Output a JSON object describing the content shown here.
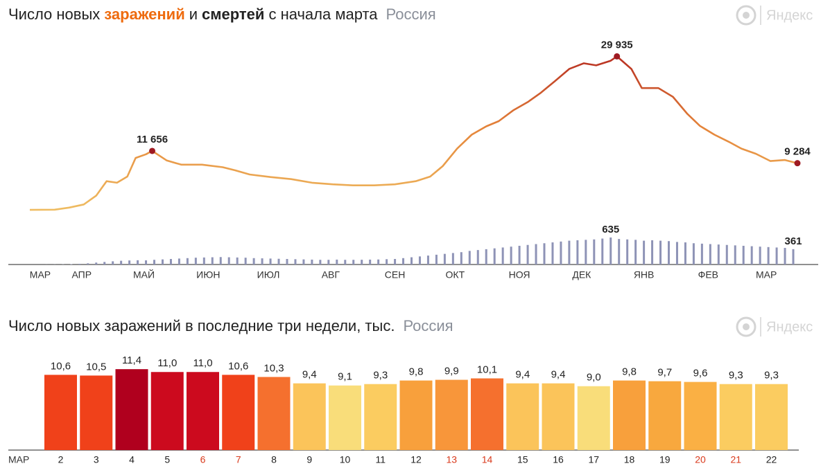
{
  "brand": "Яндекс",
  "chart_data": [
    {
      "type": "line",
      "title_parts": [
        "Число новых",
        "заражений",
        "и",
        "смертей",
        "с начала марта"
      ],
      "title_styles": [
        {
          "color": "#222",
          "bold": false
        },
        {
          "color": "#ee6b0e",
          "bold": true
        },
        {
          "color": "#222",
          "bold": false
        },
        {
          "color": "#222",
          "bold": true
        },
        {
          "color": "#222",
          "bold": false
        }
      ],
      "region": "Россия",
      "xlim": [
        20,
        390
      ],
      "xticks": [
        {
          "value": 25,
          "label": "МАР"
        },
        {
          "value": 45,
          "label": "АПР"
        },
        {
          "value": 75,
          "label": "МАЙ"
        },
        {
          "value": 106,
          "label": "ИЮН"
        },
        {
          "value": 135,
          "label": "ИЮЛ"
        },
        {
          "value": 165,
          "label": "АВГ"
        },
        {
          "value": 196,
          "label": "СЕН"
        },
        {
          "value": 225,
          "label": "ОКТ"
        },
        {
          "value": 256,
          "label": "НОЯ"
        },
        {
          "value": 286,
          "label": "ДЕК"
        },
        {
          "value": 316,
          "label": "ЯНВ"
        },
        {
          "value": 347,
          "label": "ФЕВ"
        },
        {
          "value": 375,
          "label": "МАР"
        }
      ],
      "ylim": [
        0,
        32000
      ],
      "y2lim": [
        0,
        700
      ],
      "gradient": [
        "#efbd62",
        "#e5853a",
        "#b1221e"
      ],
      "marker_color": "#9e1a22",
      "series": [
        {
          "name": "заражений",
          "type": "line",
          "x": [
            20,
            32,
            39,
            46,
            52,
            57,
            62,
            67,
            71,
            76,
            79,
            86,
            93,
            103,
            113,
            119,
            126,
            136,
            146,
            156,
            166,
            176,
            186,
            196,
            206,
            213,
            219,
            226,
            233,
            240,
            246,
            253,
            260,
            266,
            273,
            280,
            287,
            293,
            300,
            303,
            310,
            315,
            323,
            330,
            337,
            343,
            350,
            357,
            363,
            370,
            377,
            384,
            390
          ],
          "values": [
            250,
            300,
            700,
            1300,
            3000,
            5800,
            5500,
            6700,
            10300,
            11000,
            11656,
            9800,
            9000,
            9000,
            8500,
            7900,
            7100,
            6600,
            6200,
            5500,
            5200,
            5000,
            5000,
            5200,
            5800,
            6700,
            8700,
            12100,
            14800,
            16400,
            17400,
            19500,
            21100,
            22800,
            25100,
            27500,
            28600,
            28200,
            29100,
            29935,
            27500,
            23800,
            23800,
            22100,
            18800,
            16500,
            14800,
            13400,
            12100,
            11100,
            9700,
            9900,
            9284
          ],
          "value_labels": [
            null,
            null,
            null,
            null,
            null,
            null,
            null,
            null,
            null,
            null,
            "11 656",
            null,
            null,
            null,
            null,
            null,
            null,
            null,
            null,
            null,
            null,
            null,
            null,
            null,
            null,
            null,
            null,
            null,
            null,
            null,
            null,
            null,
            null,
            null,
            null,
            null,
            null,
            null,
            null,
            "29 935",
            null,
            null,
            null,
            null,
            null,
            null,
            null,
            null,
            null,
            null,
            null,
            null,
            "9 284"
          ]
        },
        {
          "name": "смертей",
          "type": "bar",
          "axis": "y2",
          "color": "#8e93b6",
          "x": [
            24,
            28,
            32,
            36,
            40,
            44,
            48,
            52,
            56,
            60,
            64,
            68,
            72,
            76,
            80,
            84,
            88,
            92,
            96,
            100,
            104,
            108,
            112,
            116,
            120,
            124,
            128,
            132,
            136,
            140,
            144,
            148,
            152,
            156,
            160,
            164,
            168,
            172,
            176,
            180,
            184,
            188,
            192,
            196,
            200,
            204,
            208,
            212,
            216,
            220,
            224,
            228,
            232,
            236,
            240,
            244,
            248,
            252,
            256,
            260,
            264,
            268,
            272,
            276,
            280,
            284,
            288,
            292,
            296,
            300,
            304,
            308,
            312,
            316,
            320,
            324,
            328,
            332,
            336,
            340,
            344,
            348,
            352,
            356,
            360,
            364,
            368,
            372,
            376,
            380,
            384,
            388
          ],
          "values": [
            0,
            1,
            2,
            4,
            9,
            17,
            28,
            45,
            60,
            75,
            88,
            95,
            100,
            98,
            110,
            120,
            130,
            140,
            150,
            160,
            165,
            170,
            175,
            170,
            165,
            160,
            150,
            145,
            140,
            135,
            130,
            125,
            120,
            115,
            110,
            110,
            115,
            110,
            110,
            112,
            115,
            118,
            125,
            130,
            150,
            170,
            190,
            210,
            230,
            250,
            270,
            290,
            320,
            340,
            360,
            380,
            400,
            420,
            440,
            460,
            480,
            500,
            520,
            540,
            560,
            570,
            580,
            590,
            610,
            635,
            600,
            590,
            580,
            560,
            570,
            560,
            550,
            530,
            520,
            500,
            490,
            480,
            470,
            460,
            450,
            440,
            430,
            420,
            410,
            400,
            390,
            361
          ],
          "value_labels": [
            null,
            null,
            null,
            null,
            null,
            null,
            null,
            null,
            null,
            null,
            null,
            null,
            null,
            null,
            null,
            null,
            null,
            null,
            null,
            null,
            null,
            null,
            null,
            null,
            null,
            null,
            null,
            null,
            null,
            null,
            null,
            null,
            null,
            null,
            null,
            null,
            null,
            null,
            null,
            null,
            null,
            null,
            null,
            null,
            null,
            null,
            null,
            null,
            null,
            null,
            null,
            null,
            null,
            null,
            null,
            null,
            null,
            null,
            null,
            null,
            null,
            null,
            null,
            null,
            null,
            null,
            null,
            null,
            null,
            "635",
            null,
            null,
            null,
            null,
            null,
            null,
            null,
            null,
            null,
            null,
            null,
            null,
            null,
            null,
            null,
            null,
            null,
            null,
            null,
            null,
            null,
            "361"
          ]
        }
      ]
    },
    {
      "type": "bar",
      "title": "Число новых заражений в последние три недели, тыс.",
      "region": "Россия",
      "xlabel": "МАР",
      "categories": [
        "2",
        "3",
        "4",
        "5",
        "6",
        "7",
        "8",
        "9",
        "10",
        "11",
        "12",
        "13",
        "14",
        "15",
        "16",
        "17",
        "18",
        "19",
        "20",
        "21",
        "22"
      ],
      "category_colors": [
        "#222",
        "#222",
        "#222",
        "#222",
        "#d93a1c",
        "#d93a1c",
        "#222",
        "#222",
        "#222",
        "#222",
        "#222",
        "#d93a1c",
        "#d93a1c",
        "#222",
        "#222",
        "#222",
        "#222",
        "#222",
        "#d93a1c",
        "#d93a1c",
        "#222"
      ],
      "values": [
        10.6,
        10.5,
        11.4,
        11.0,
        11.0,
        10.6,
        10.3,
        9.4,
        9.1,
        9.3,
        9.8,
        9.9,
        10.1,
        9.4,
        9.4,
        9.0,
        9.8,
        9.7,
        9.6,
        9.3,
        9.3
      ],
      "value_labels": [
        "10,6",
        "10,5",
        "11,4",
        "11,0",
        "11,0",
        "10,6",
        "10,3",
        "9,4",
        "9,1",
        "9,3",
        "9,8",
        "9,9",
        "10,1",
        "9,4",
        "9,4",
        "9,0",
        "9,8",
        "9,7",
        "9,6",
        "9,3",
        "9,3"
      ],
      "colors": [
        "#f0411a",
        "#f0411a",
        "#b0001e",
        "#cc0a1e",
        "#cc0a1e",
        "#f0411a",
        "#f5702e",
        "#fbc45a",
        "#f9dd7a",
        "#fbcc60",
        "#f8a03c",
        "#f8963a",
        "#f5702e",
        "#fbc45a",
        "#fbc45a",
        "#f9dd7a",
        "#f8a03c",
        "#f8a83e",
        "#fab044",
        "#fbcc60",
        "#fbcc60"
      ],
      "ylim": [
        0,
        12
      ]
    }
  ]
}
